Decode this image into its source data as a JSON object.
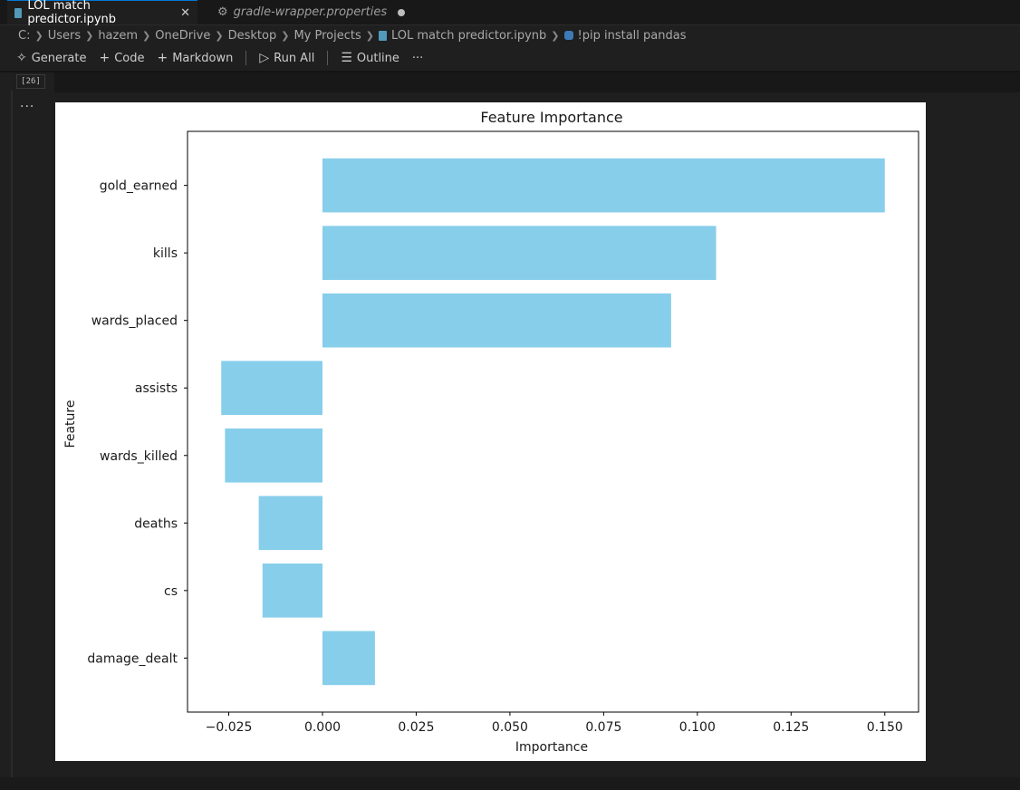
{
  "tabs": [
    {
      "label": "LOL match predictor.ipynb",
      "icon": "notebook-icon",
      "active": true,
      "close": "✕"
    },
    {
      "label": "gradle-wrapper.properties",
      "icon": "gear-icon",
      "active": false,
      "modified": true
    }
  ],
  "breadcrumb": [
    "C:",
    "Users",
    "hazem",
    "OneDrive",
    "Desktop",
    "My Projects",
    "LOL match predictor.ipynb",
    "!pip install pandas"
  ],
  "toolbar": {
    "generate": "Generate",
    "code": "Code",
    "markdown": "Markdown",
    "run_all": "Run All",
    "outline": "Outline",
    "more": "···"
  },
  "cell": {
    "execution_count": "[26]",
    "output_menu": "···"
  },
  "colors": {
    "bar": "#87ceeb",
    "background": "#1f1f1f",
    "tab_accent": "#0078d4"
  },
  "chart_data": {
    "type": "bar",
    "orientation": "horizontal",
    "title": "Feature Importance",
    "xlabel": "Importance",
    "ylabel": "Feature",
    "categories": [
      "gold_earned",
      "kills",
      "wards_placed",
      "assists",
      "wards_killed",
      "deaths",
      "cs",
      "damage_dealt"
    ],
    "values": [
      0.15,
      0.105,
      0.093,
      -0.027,
      -0.026,
      -0.017,
      -0.016,
      0.014
    ],
    "xlim": [
      -0.036,
      0.159
    ],
    "xticks": [
      "−0.025",
      "0.000",
      "0.025",
      "0.050",
      "0.075",
      "0.100",
      "0.125",
      "0.150"
    ],
    "xtick_values": [
      -0.025,
      0,
      0.025,
      0.05,
      0.075,
      0.1,
      0.125,
      0.15
    ],
    "grid": false
  }
}
